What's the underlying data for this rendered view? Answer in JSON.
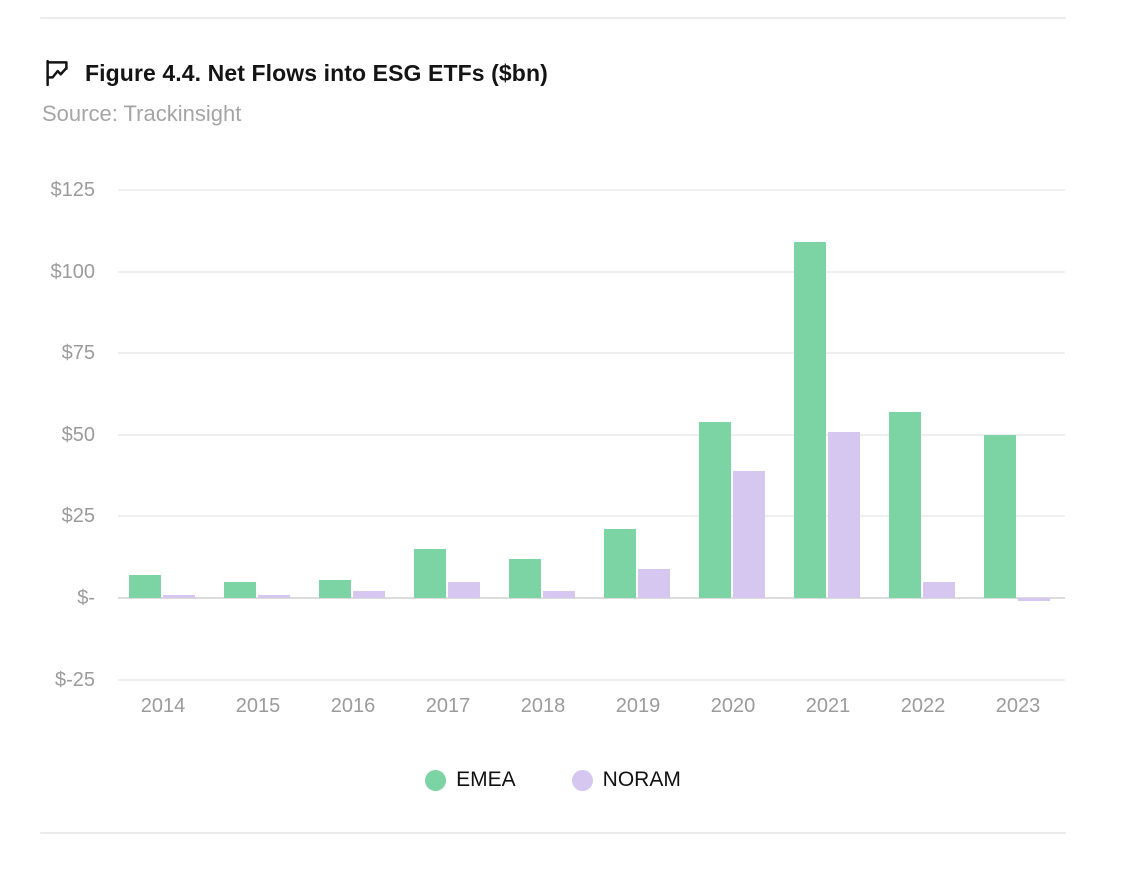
{
  "header": {
    "title": "Figure 4.4. Net Flows into ESG ETFs ($bn)",
    "source": "Source: Trackinsight",
    "icon": "flag-chart-icon"
  },
  "colors": {
    "emea": "#7cd3a3",
    "noram": "#d5c7f0",
    "grid": "#efefef",
    "zero_line": "#dcdcdc",
    "axis_text": "#9b9b9b",
    "title_text": "#141414",
    "source_text": "#a5a5a5"
  },
  "chart_data": {
    "type": "bar",
    "title": "Figure 4.4. Net Flows into ESG ETFs ($bn)",
    "source": "Source: Trackinsight",
    "categories": [
      "2014",
      "2015",
      "2016",
      "2017",
      "2018",
      "2019",
      "2020",
      "2021",
      "2022",
      "2023"
    ],
    "series": [
      {
        "name": "EMEA",
        "color": "#7cd3a3",
        "values": [
          7,
          5,
          5.5,
          15,
          12,
          21,
          54,
          109,
          57,
          50
        ]
      },
      {
        "name": "NORAM",
        "color": "#d5c7f0",
        "values": [
          1,
          1,
          2,
          5,
          2,
          9,
          39,
          51,
          5,
          -1
        ]
      }
    ],
    "xlabel": "",
    "ylabel": "",
    "y_ticks": [
      {
        "label": "$125",
        "value": 125
      },
      {
        "label": "$100",
        "value": 100
      },
      {
        "label": "$75",
        "value": 75
      },
      {
        "label": "$50",
        "value": 50
      },
      {
        "label": "$25",
        "value": 25
      },
      {
        "label": "$-",
        "value": 0
      },
      {
        "label": "$-25",
        "value": -25
      }
    ],
    "ylim": [
      -25,
      125
    ],
    "grid": true,
    "legend_position": "bottom"
  },
  "legend": {
    "items": [
      {
        "label": "EMEA",
        "color": "#7cd3a3"
      },
      {
        "label": "NORAM",
        "color": "#d5c7f0"
      }
    ]
  }
}
